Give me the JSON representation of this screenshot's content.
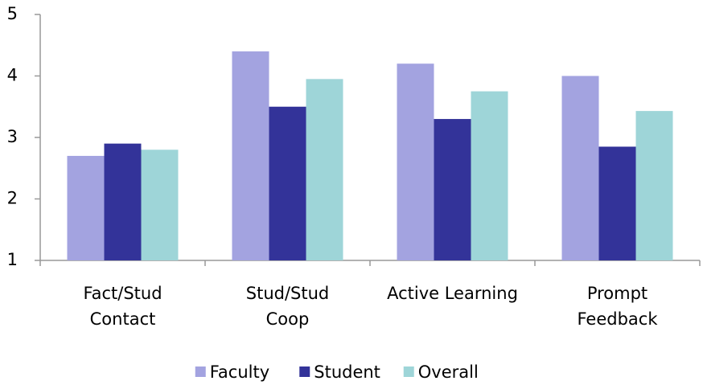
{
  "chart_data": {
    "type": "bar",
    "categories": [
      [
        "Fact/Stud",
        "Contact"
      ],
      [
        "Stud/Stud",
        "Coop"
      ],
      [
        "Active Learning"
      ],
      [
        "Prompt",
        "Feedback"
      ]
    ],
    "series": [
      {
        "name": "Faculty",
        "color": "#a3a3e0",
        "values": [
          2.7,
          4.4,
          4.2,
          4.0
        ]
      },
      {
        "name": "Student",
        "color": "#333399",
        "values": [
          2.9,
          3.5,
          3.3,
          2.85
        ]
      },
      {
        "name": "Overall",
        "color": "#9ed5d8",
        "values": [
          2.8,
          3.95,
          3.75,
          3.43
        ]
      }
    ],
    "ylim": [
      1,
      5
    ],
    "yticks": [
      1,
      2,
      3,
      4,
      5
    ],
    "grid": false,
    "legend": "bottom"
  }
}
